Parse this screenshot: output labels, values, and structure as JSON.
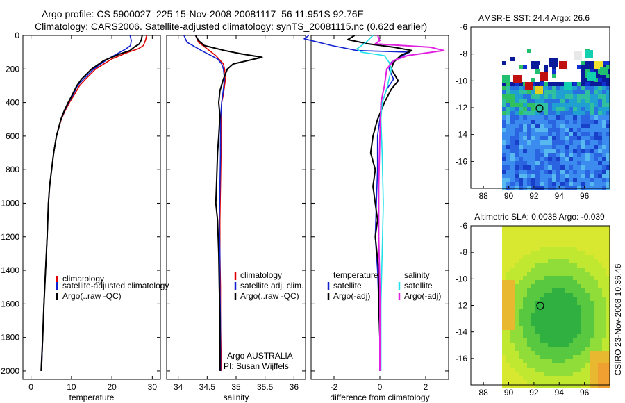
{
  "header": {
    "line1": "Argo profile: CS 5900027_225 15-Nov-2008 20081117_56 11.951S 92.76E",
    "line2": "Climatology: CARS2006. Satellite-adjusted climatology: synTS_20081115.nc (0.62d earlier)"
  },
  "colors": {
    "climatology": "#e00000",
    "satellite": "#1020d0",
    "argo": "#000000",
    "sal_satellite": "#20e0e8",
    "sal_argo": "#e020e0"
  },
  "chart_data": [
    {
      "type": "line",
      "name": "temperature-profile",
      "xlabel": "temperature",
      "ylabel": "",
      "xlim": [
        -2,
        32
      ],
      "ylim": [
        2050,
        0
      ],
      "x_ticks": [
        "0",
        "10",
        "20",
        "30"
      ],
      "y_ticks": [
        "0",
        "200",
        "400",
        "600",
        "800",
        "1000",
        "1200",
        "1400",
        "1600",
        "1800",
        "2000"
      ],
      "legend": [
        "climatology",
        "satellite-adjusted climatology",
        "Argo(..raw -QC)"
      ],
      "series": [
        {
          "name": "climatology",
          "color_key": "climatology",
          "points": [
            [
              28.6,
              0
            ],
            [
              28.3,
              30
            ],
            [
              27.8,
              60
            ],
            [
              26.5,
              80
            ],
            [
              24,
              100
            ],
            [
              20,
              140
            ],
            [
              16,
              200
            ],
            [
              13.5,
              260
            ],
            [
              12,
              300
            ],
            [
              10.8,
              350
            ],
            [
              9.5,
              400
            ],
            [
              8.4,
              450
            ],
            [
              7.5,
              500
            ],
            [
              6.3,
              600
            ],
            [
              5.6,
              700
            ],
            [
              5.1,
              800
            ],
            [
              4.6,
              900
            ],
            [
              4.3,
              1000
            ],
            [
              4,
              1200
            ],
            [
              3.6,
              1400
            ],
            [
              3.2,
              1600
            ],
            [
              2.9,
              1800
            ],
            [
              2.6,
              2000
            ]
          ]
        },
        {
          "name": "satellite-adjusted climatology",
          "color_key": "satellite",
          "points": [
            [
              24.5,
              0
            ],
            [
              24.8,
              30
            ],
            [
              24.6,
              60
            ],
            [
              23.5,
              80
            ],
            [
              22,
              100
            ],
            [
              19,
              140
            ],
            [
              15.5,
              200
            ],
            [
              13,
              260
            ],
            [
              11.5,
              300
            ],
            [
              10.5,
              350
            ],
            [
              9.3,
              400
            ],
            [
              8.3,
              450
            ],
            [
              7.4,
              500
            ],
            [
              6.3,
              600
            ],
            [
              5.6,
              700
            ],
            [
              5.1,
              800
            ],
            [
              4.6,
              900
            ],
            [
              4.3,
              1000
            ],
            [
              4,
              1200
            ],
            [
              3.6,
              1400
            ],
            [
              3.2,
              1600
            ],
            [
              2.9,
              1800
            ],
            [
              2.6,
              2000
            ]
          ]
        },
        {
          "name": "Argo(..raw -QC)",
          "color_key": "argo",
          "points": [
            [
              27.5,
              0
            ],
            [
              27.3,
              25
            ],
            [
              26.8,
              50
            ],
            [
              25.5,
              70
            ],
            [
              24.5,
              90
            ],
            [
              22,
              110
            ],
            [
              18,
              150
            ],
            [
              15,
              200
            ],
            [
              12.5,
              260
            ],
            [
              11.3,
              300
            ],
            [
              10.3,
              350
            ],
            [
              9.2,
              400
            ],
            [
              8.2,
              450
            ],
            [
              7.4,
              500
            ],
            [
              6.3,
              600
            ],
            [
              5.6,
              700
            ],
            [
              5.1,
              800
            ],
            [
              4.6,
              900
            ],
            [
              4.3,
              1000
            ],
            [
              4,
              1200
            ],
            [
              3.6,
              1400
            ],
            [
              3.2,
              1600
            ],
            [
              2.9,
              1800
            ],
            [
              2.5,
              2000
            ]
          ]
        }
      ]
    },
    {
      "type": "line",
      "name": "salinity-profile",
      "xlabel": "salinity",
      "xlim": [
        33.8,
        36.2
      ],
      "ylim": [
        2050,
        0
      ],
      "x_ticks": [
        "34",
        "34.5",
        "35",
        "35.5",
        "36"
      ],
      "legend": [
        "climatology",
        "satellite adj. clim.",
        "Argo(..raw -QC)"
      ],
      "annotation": [
        "Argo AUSTRALIA",
        "PI: Susan Wijffels"
      ],
      "series": [
        {
          "name": "climatology",
          "color_key": "climatology",
          "points": [
            [
              34.3,
              0
            ],
            [
              34.35,
              40
            ],
            [
              34.5,
              80
            ],
            [
              34.65,
              120
            ],
            [
              34.78,
              170
            ],
            [
              34.8,
              200
            ],
            [
              34.82,
              250
            ],
            [
              34.8,
              300
            ],
            [
              34.78,
              350
            ],
            [
              34.75,
              400
            ],
            [
              34.74,
              500
            ],
            [
              34.74,
              700
            ],
            [
              34.73,
              900
            ],
            [
              34.72,
              1100
            ],
            [
              34.72,
              1300
            ],
            [
              34.73,
              1500
            ],
            [
              34.73,
              1700
            ],
            [
              34.74,
              1900
            ],
            [
              34.74,
              2000
            ]
          ]
        },
        {
          "name": "satellite adj. clim.",
          "color_key": "satellite",
          "points": [
            [
              34.1,
              0
            ],
            [
              34.15,
              40
            ],
            [
              34.4,
              90
            ],
            [
              34.68,
              140
            ],
            [
              34.75,
              170
            ],
            [
              34.78,
              200
            ],
            [
              34.8,
              260
            ],
            [
              34.78,
              320
            ],
            [
              34.75,
              400
            ],
            [
              34.73,
              500
            ],
            [
              34.73,
              700
            ],
            [
              34.72,
              900
            ],
            [
              34.71,
              1100
            ],
            [
              34.72,
              1300
            ],
            [
              34.72,
              1500
            ],
            [
              34.73,
              1700
            ],
            [
              34.73,
              1900
            ],
            [
              34.73,
              2000
            ]
          ]
        },
        {
          "name": "Argo(..raw -QC)",
          "color_key": "argo",
          "points": [
            [
              34.3,
              0
            ],
            [
              34.35,
              30
            ],
            [
              34.45,
              60
            ],
            [
              34.8,
              90
            ],
            [
              35.1,
              110
            ],
            [
              35.45,
              130
            ],
            [
              35.2,
              150
            ],
            [
              34.95,
              170
            ],
            [
              34.85,
              200
            ],
            [
              34.78,
              260
            ],
            [
              34.72,
              330
            ],
            [
              34.7,
              400
            ],
            [
              34.72,
              480
            ],
            [
              34.7,
              600
            ],
            [
              34.68,
              700
            ],
            [
              34.67,
              800
            ],
            [
              34.66,
              900
            ],
            [
              34.65,
              1000
            ],
            [
              34.68,
              1100
            ],
            [
              34.7,
              1300
            ],
            [
              34.71,
              1500
            ],
            [
              34.72,
              1700
            ],
            [
              34.72,
              1900
            ],
            [
              34.72,
              2000
            ]
          ]
        }
      ]
    },
    {
      "type": "line",
      "name": "difference-profile",
      "xlabel": "difference from climatology",
      "xlim": [
        -3,
        3
      ],
      "ylim": [
        2050,
        0
      ],
      "x_ticks": [
        "-2",
        "0",
        "2"
      ],
      "legend_temperature": [
        "temperature",
        "satellite",
        "Argo(-adj)"
      ],
      "legend_salinity": [
        "salinity",
        "satellite",
        "Argo(-adj)"
      ],
      "series": [
        {
          "name": "temperature satellite",
          "color_key": "satellite",
          "points": [
            [
              -3.1,
              0
            ],
            [
              -3.3,
              20
            ],
            [
              -2.1,
              60
            ],
            [
              -1,
              90
            ],
            [
              1.3,
              100
            ],
            [
              1,
              120
            ],
            [
              0.5,
              160
            ],
            [
              0.4,
              200
            ],
            [
              0.6,
              260
            ],
            [
              0.3,
              320
            ],
            [
              0.1,
              400
            ],
            [
              0,
              500
            ],
            [
              -0.1,
              600
            ],
            [
              -0.1,
              800
            ],
            [
              -0.15,
              1000
            ],
            [
              -0.2,
              1200
            ],
            [
              -0.1,
              1400
            ],
            [
              -0.05,
              1600
            ],
            [
              0,
              1800
            ],
            [
              0,
              2000
            ]
          ]
        },
        {
          "name": "temperature Argo(-adj)",
          "color_key": "argo",
          "points": [
            [
              -1.1,
              0
            ],
            [
              -1.4,
              25
            ],
            [
              -0.5,
              50
            ],
            [
              0.6,
              70
            ],
            [
              1.4,
              90
            ],
            [
              0.9,
              120
            ],
            [
              0.6,
              160
            ],
            [
              0.5,
              200
            ],
            [
              0.8,
              270
            ],
            [
              0.5,
              320
            ],
            [
              0.2,
              400
            ],
            [
              -0.1,
              500
            ],
            [
              -0.3,
              600
            ],
            [
              -0.4,
              700
            ],
            [
              -0.2,
              800
            ],
            [
              -0.3,
              900
            ],
            [
              -0.2,
              1000
            ],
            [
              -0.1,
              1100
            ],
            [
              -0.2,
              1200
            ],
            [
              -0.05,
              1400
            ],
            [
              -0.05,
              1600
            ],
            [
              0,
              1800
            ],
            [
              0,
              2000
            ]
          ]
        },
        {
          "name": "salinity satellite",
          "color_key": "sal_satellite",
          "points": [
            [
              -0.3,
              0
            ],
            [
              -0.6,
              40
            ],
            [
              -1,
              80
            ],
            [
              -0.8,
              100
            ],
            [
              0.2,
              120
            ],
            [
              0.4,
              160
            ],
            [
              0.5,
              200
            ],
            [
              0.4,
              260
            ],
            [
              0.3,
              320
            ],
            [
              0.1,
              400
            ],
            [
              0.05,
              500
            ],
            [
              0.1,
              700
            ],
            [
              0.15,
              1000
            ],
            [
              0.1,
              1300
            ],
            [
              0.05,
              1600
            ],
            [
              0.05,
              2000
            ]
          ]
        },
        {
          "name": "salinity Argo(-adj)",
          "color_key": "sal_argo",
          "points": [
            [
              -0.1,
              0
            ],
            [
              0,
              30
            ],
            [
              -0.2,
              50
            ],
            [
              2.2,
              70
            ],
            [
              2.8,
              90
            ],
            [
              1.2,
              120
            ],
            [
              0.6,
              150
            ],
            [
              0.3,
              200
            ],
            [
              0.2,
              300
            ],
            [
              0.05,
              400
            ],
            [
              0,
              600
            ],
            [
              -0.05,
              900
            ],
            [
              -0.05,
              1200
            ],
            [
              0,
              1500
            ],
            [
              0,
              1800
            ],
            [
              0,
              2000
            ]
          ]
        }
      ]
    },
    {
      "type": "heatmap",
      "name": "amsr-sst-map",
      "title": "AMSR-E SST: 24.4  Argo: 26.6",
      "xlim": [
        87,
        98
      ],
      "ylim": [
        -18,
        -6
      ],
      "x_ticks": [
        "88",
        "90",
        "92",
        "94",
        "96"
      ],
      "y_ticks": [
        "-6",
        "-8",
        "-10",
        "-12",
        "-14",
        "-16"
      ],
      "marker": [
        92.76,
        -11.951
      ]
    },
    {
      "type": "heatmap",
      "name": "altimetric-sla-map",
      "title": "Altimetric SLA: 0.0038  Argo: -0.039",
      "xlim": [
        87,
        98
      ],
      "ylim": [
        -18,
        -6
      ],
      "x_ticks": [
        "88",
        "90",
        "92",
        "94",
        "96"
      ],
      "y_ticks": [
        "-6",
        "-8",
        "-10",
        "-12",
        "-14",
        "-16"
      ],
      "marker": [
        92.76,
        -11.951
      ]
    }
  ],
  "footer": {
    "stamp": "CSIRO 23-Nov-2008 10:36:46"
  }
}
